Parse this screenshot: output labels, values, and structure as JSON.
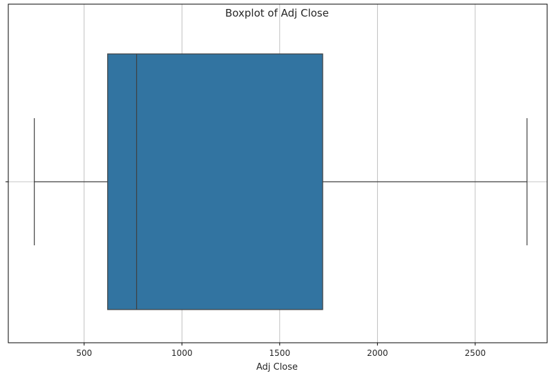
{
  "chart_data": {
    "type": "boxplot",
    "title": "Boxplot of Adj Close",
    "xlabel": "Adj Close",
    "ylabel": "",
    "orientation": "horizontal",
    "xlim": [
      112,
      2868
    ],
    "xticks": [
      500,
      1000,
      1500,
      2000,
      2500
    ],
    "xtick_labels": [
      "500",
      "1000",
      "1500",
      "2000",
      "2500"
    ],
    "grid": true,
    "box": {
      "whisker_low": 245,
      "q1": 620,
      "median": 768,
      "q3": 1720,
      "whisker_high": 2765
    },
    "colors": {
      "box_fill": "#3274a1",
      "box_edge": "#3f3f3f",
      "grid": "#b0b0b0",
      "axes": "#000000"
    }
  }
}
